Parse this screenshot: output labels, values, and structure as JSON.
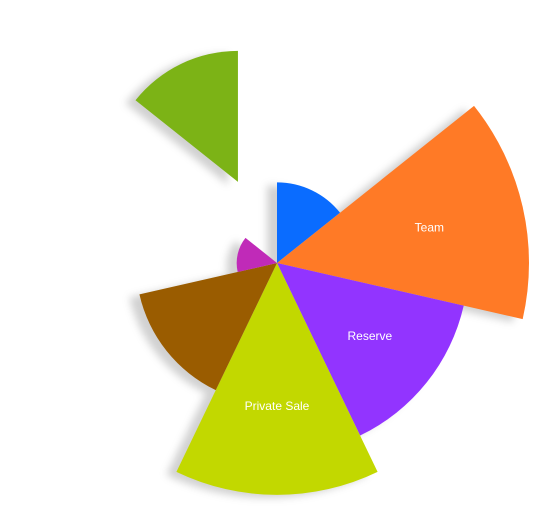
{
  "chart_data": {
    "type": "pie",
    "variant": "rose",
    "title": "",
    "categories": [
      "",
      "Team",
      "Reserve",
      "Private Sale",
      "",
      "",
      ""
    ],
    "values": [
      80,
      250,
      190,
      230,
      140,
      40,
      130
    ],
    "colors": [
      "#0a6cff",
      "#ff7a26",
      "#9234ff",
      "#c2d800",
      "#9a5c00",
      "#c02ab8",
      "#7cb316"
    ],
    "exploded": [
      false,
      false,
      false,
      false,
      false,
      false,
      true
    ],
    "labels_shown": [
      "Team",
      "Reserve",
      "Private Sale"
    ]
  }
}
